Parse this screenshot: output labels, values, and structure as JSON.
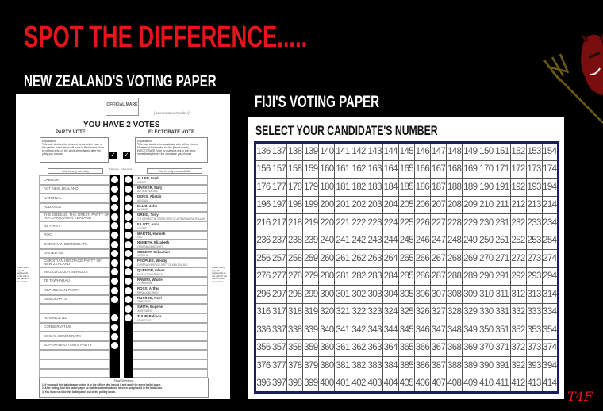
{
  "headline": "SPOT THE DIFFERENCE.....",
  "nz": {
    "title": "NEW ZEALAND'S VOTING PAPER",
    "official_mark": "OFFICIAL MARK",
    "consecutive": "[Consecutive Number]",
    "you_have": "YOU HAVE 2 VOTES",
    "party_vote": "PARTY VOTE",
    "electorate_vote": "ELECTORATE VOTE",
    "party_expl": "Explanation\nThis vote decides the share of seats which each of the parties listed below will have in Parliament. Vote by putting a tick in the circle immediately after the party you choose.",
    "elect_expl": "Explanation\nThis vote decides the candidate who will be elected Member of Parliament for the [insert name] ELECTORATE. Vote by putting a tick in the circle immediately before the candidate you choose.",
    "vote_one_party": "Vote for only one party",
    "vote_one_candidate": "Vote for only one candidate",
    "vote_here": "Vote here",
    "left_note": "(Insert party logo (if registered) to the left of the name of the party)",
    "right_note": "(Insert party logo (if registered) to the right of the name of the candidate)",
    "rows": [
      {
        "party": "LABOUR",
        "name": "ALLEN, Fred",
        "affil": "LABOUR"
      },
      {
        "party": "ACT NEW ZEALAND",
        "name": "BARKER, Mary",
        "affil": "ACT NEW ZEALAND"
      },
      {
        "party": "NATIONAL",
        "name": "DENIS, Alistair",
        "affil": "NATIONAL"
      },
      {
        "party": "ALLIANCE",
        "name": "ELLIS, John",
        "affil": "ALLIANCE"
      },
      {
        "party": "THE GREENS, THE GREEN PARTY OF AOTEAROA/NEW ZEALAND",
        "name": "GREIG, Tony",
        "affil": "THE GREENS, THE GREEN PARTY OF AOTEAROA/NEW ZEALAND"
      },
      {
        "party": "NZ FIRST",
        "name": "ILLOTT, Anna",
        "affil": "NZ FIRST"
      },
      {
        "party": "ROC",
        "name": "MARTIN, Hamish",
        "affil": "ROC"
      },
      {
        "party": "CHRISTIAN DEMOCRATS",
        "name": "NEMETH, Elizabeth",
        "affil": "CHRISTIAN DEMOCRATS"
      },
      {
        "party": "UNITED NZ",
        "name": "OSBERT, Sebastian",
        "affil": "UNITED NZ"
      },
      {
        "party": "CHRISTIAN HERITAGE PARTY OF NEW ZEALAND",
        "name": "PEOPLES, Wendy",
        "affil": "CHRISTIAN HERITAGE PARTY OF NEW ZEALAND"
      },
      {
        "party": "McGILLICUDDY SERIOUS",
        "name": "QUENTIN, Oliver",
        "affil": "McGILLICUDDY SERIOUS"
      },
      {
        "party": "TE TAWHARAU",
        "name": "RAWIRI, Whare",
        "affil": "TE TAWHARAU"
      },
      {
        "party": "REPUBLICAN PARTY",
        "name": "ROSS, Arthur",
        "affil": "REPUBLICAN PARTY"
      },
      {
        "party": "DEMOCRATS",
        "name": "RUSCOE, Noel",
        "affil": "DEMOCRATS"
      },
      {
        "party": "",
        "name": "SMITH, Eugene",
        "affil": "INDEPENDENT"
      },
      {
        "party": "ADVANCE NZ",
        "name": "TULIP, Belinda",
        "affil": "ADVANCE NZ"
      },
      {
        "party": "CONSERVATIVE",
        "name": "",
        "affil": ""
      },
      {
        "party": "SOCIAL DEMOCRATS",
        "name": "",
        "affil": ""
      },
      {
        "party": "SUPERANNUITANTS PARTY",
        "name": "",
        "affil": ""
      },
      {
        "party": "",
        "name": "",
        "affil": ""
      },
      {
        "party": "",
        "name": "",
        "affil": ""
      },
      {
        "party": "",
        "name": "",
        "affil": ""
      }
    ],
    "final_title": "Final Directions",
    "final": [
      "1. If you spoil this ballot paper, return it to the officer who issued it and apply for a new ballot paper.",
      "2. After voting, fold this ballot paper so that its contents cannot be seen and place it in the ballot box.",
      "3. You must not take this ballot paper out of the polling booth."
    ]
  },
  "fiji": {
    "title": "FIJI'S VOTING PAPER",
    "heading": "SELECT YOUR CANDIDATE'S NUMBER",
    "grid": [
      [
        136,
        137,
        138,
        139,
        140,
        141,
        142,
        143,
        144,
        145,
        146,
        147,
        148,
        149,
        150,
        151,
        152,
        153,
        154
      ],
      [
        156,
        157,
        158,
        159,
        160,
        161,
        162,
        163,
        164,
        165,
        166,
        167,
        168,
        169,
        170,
        171,
        172,
        173,
        174
      ],
      [
        176,
        177,
        178,
        179,
        180,
        181,
        182,
        183,
        184,
        185,
        186,
        187,
        188,
        189,
        190,
        191,
        192,
        193,
        194
      ],
      [
        196,
        197,
        198,
        199,
        200,
        201,
        202,
        203,
        204,
        205,
        206,
        207,
        208,
        209,
        210,
        211,
        212,
        213,
        214
      ],
      [
        216,
        217,
        218,
        219,
        220,
        221,
        222,
        223,
        224,
        225,
        226,
        227,
        228,
        229,
        230,
        231,
        232,
        233,
        234
      ],
      [
        236,
        237,
        238,
        239,
        240,
        241,
        242,
        243,
        244,
        245,
        246,
        247,
        248,
        249,
        250,
        251,
        252,
        253,
        254
      ],
      [
        256,
        257,
        258,
        259,
        260,
        261,
        262,
        263,
        264,
        265,
        266,
        267,
        268,
        269,
        270,
        271,
        272,
        273,
        274
      ],
      [
        276,
        277,
        278,
        279,
        280,
        281,
        282,
        283,
        284,
        285,
        286,
        287,
        288,
        289,
        290,
        291,
        292,
        293,
        294
      ],
      [
        296,
        297,
        298,
        299,
        300,
        301,
        302,
        303,
        304,
        305,
        306,
        307,
        308,
        309,
        310,
        311,
        312,
        313,
        314
      ],
      [
        316,
        317,
        318,
        319,
        320,
        321,
        322,
        323,
        324,
        325,
        326,
        327,
        328,
        329,
        330,
        331,
        332,
        333,
        334
      ],
      [
        336,
        337,
        338,
        339,
        340,
        341,
        342,
        343,
        344,
        345,
        346,
        347,
        348,
        349,
        350,
        351,
        352,
        353,
        354
      ],
      [
        356,
        357,
        358,
        359,
        360,
        361,
        362,
        363,
        364,
        365,
        366,
        367,
        368,
        369,
        370,
        371,
        372,
        373,
        374
      ],
      [
        376,
        377,
        378,
        379,
        380,
        381,
        382,
        383,
        384,
        385,
        386,
        387,
        388,
        389,
        390,
        391,
        392,
        393,
        394
      ],
      [
        396,
        397,
        398,
        399,
        400,
        401,
        402,
        403,
        404,
        405,
        406,
        407,
        408,
        409,
        410,
        411,
        412,
        413,
        414
      ]
    ]
  },
  "signature": "T4F",
  "colors": {
    "headline": "#e8141b",
    "background": "#000000",
    "grid_border": "#1b1f5c"
  },
  "icons": [
    "devil-with-trident",
    "tick-in-circle"
  ]
}
